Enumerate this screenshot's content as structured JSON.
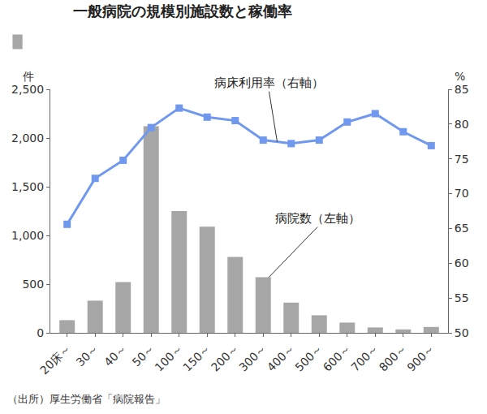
{
  "chart_data": {
    "type": "bar",
    "title": "一般病院の規模別施設数と稼働率",
    "ylabel": "件",
    "y2label": "%",
    "categories": [
      "20床～",
      "30～",
      "40～",
      "50～",
      "100～",
      "150～",
      "200～",
      "300～",
      "400～",
      "500～",
      "600～",
      "700～",
      "800～",
      "900～"
    ],
    "series": [
      {
        "type": "bar",
        "color": "#a6a6a6",
        "values": [
          130,
          330,
          520,
          2120,
          1250,
          1090,
          780,
          570,
          310,
          180,
          105,
          55,
          35,
          60
        ]
      },
      {
        "type": "line",
        "axis": "y2",
        "color": "#6f98ee",
        "marker": "square",
        "line_style": "solid",
        "values": [
          65.6,
          72.2,
          74.8,
          79.5,
          82.3,
          81.0,
          80.5,
          77.7,
          77.2,
          77.7,
          80.3,
          81.5,
          78.9,
          76.9
        ]
      }
    ],
    "annotations": [
      "病床利用率（右軸）",
      "病院数（左軸）"
    ],
    "source": "（出所）厚生労働省「病院報告」",
    "ylim": [
      0,
      2500
    ],
    "yticks": [
      0,
      500,
      {
        "value": 1000,
        "label": "1,000"
      },
      {
        "value": 1500,
        "label": "1,500"
      },
      {
        "value": 2000,
        "label": "2,000"
      },
      {
        "value": 2500,
        "label": "2,500"
      }
    ],
    "y2lim": [
      50,
      85
    ],
    "y2ticks": [
      50,
      55,
      60,
      65,
      70,
      75,
      80,
      85
    ],
    "grid": false
  }
}
